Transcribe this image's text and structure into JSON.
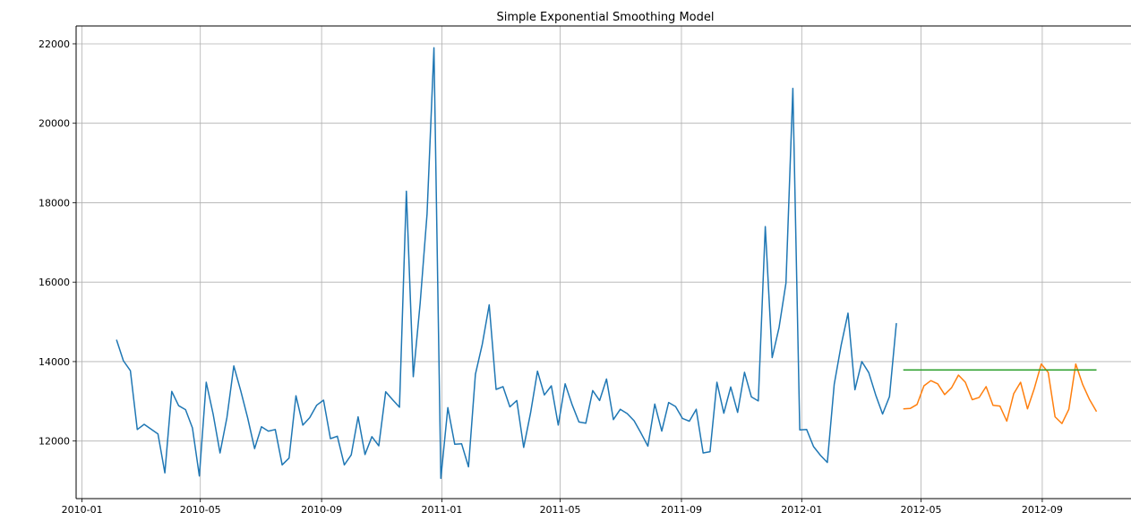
{
  "chart_data": {
    "type": "line",
    "title": "Simple Exponential Smoothing Model",
    "xlabel": "",
    "ylabel": "",
    "grid": true,
    "x_ticks": [
      "2010-01",
      "2010-05",
      "2010-09",
      "2011-01",
      "2011-05",
      "2011-09",
      "2012-01",
      "2012-05",
      "2012-09"
    ],
    "y_ticks": [
      12000,
      14000,
      16000,
      18000,
      20000,
      22000
    ],
    "xlim": [
      "2009-12-26",
      "2012-11-30"
    ],
    "ylim": [
      10550,
      22450
    ],
    "series": [
      {
        "color": "#1f77b4",
        "x": [
          "2010-02-05",
          "2010-02-12",
          "2010-02-19",
          "2010-02-26",
          "2010-03-05",
          "2010-03-12",
          "2010-03-19",
          "2010-03-26",
          "2010-04-02",
          "2010-04-09",
          "2010-04-16",
          "2010-04-23",
          "2010-04-30",
          "2010-05-07",
          "2010-05-14",
          "2010-05-21",
          "2010-05-28",
          "2010-06-04",
          "2010-06-11",
          "2010-06-18",
          "2010-06-25",
          "2010-07-02",
          "2010-07-09",
          "2010-07-16",
          "2010-07-23",
          "2010-07-30",
          "2010-08-06",
          "2010-08-13",
          "2010-08-20",
          "2010-08-27",
          "2010-09-03",
          "2010-09-10",
          "2010-09-17",
          "2010-09-24",
          "2010-10-01",
          "2010-10-08",
          "2010-10-15",
          "2010-10-22",
          "2010-10-29",
          "2010-11-05",
          "2010-11-12",
          "2010-11-19",
          "2010-11-26",
          "2010-12-03",
          "2010-12-10",
          "2010-12-17",
          "2010-12-24",
          "2010-12-31",
          "2011-01-07",
          "2011-01-14",
          "2011-01-21",
          "2011-01-28",
          "2011-02-04",
          "2011-02-11",
          "2011-02-18",
          "2011-02-25",
          "2011-03-04",
          "2011-03-11",
          "2011-03-18",
          "2011-03-25",
          "2011-04-01",
          "2011-04-08",
          "2011-04-15",
          "2011-04-22",
          "2011-04-29",
          "2011-05-06",
          "2011-05-13",
          "2011-05-20",
          "2011-05-27",
          "2011-06-03",
          "2011-06-10",
          "2011-06-17",
          "2011-06-24",
          "2011-07-01",
          "2011-07-08",
          "2011-07-15",
          "2011-07-22",
          "2011-07-29",
          "2011-08-05",
          "2011-08-12",
          "2011-08-19",
          "2011-08-26",
          "2011-09-02",
          "2011-09-09",
          "2011-09-16",
          "2011-09-23",
          "2011-09-30",
          "2011-10-07",
          "2011-10-14",
          "2011-10-21",
          "2011-10-28",
          "2011-11-04",
          "2011-11-11",
          "2011-11-18",
          "2011-11-25",
          "2011-12-02",
          "2011-12-09",
          "2011-12-16",
          "2011-12-23",
          "2011-12-30",
          "2012-01-06",
          "2012-01-13",
          "2012-01-20",
          "2012-01-27",
          "2012-02-03",
          "2012-02-10",
          "2012-02-17",
          "2012-02-24",
          "2012-03-02",
          "2012-03-09",
          "2012-03-16",
          "2012-03-23",
          "2012-03-30",
          "2012-04-06"
        ],
        "values": [
          14550,
          14020,
          13770,
          12290,
          12420,
          12300,
          12180,
          11200,
          13250,
          12890,
          12790,
          12330,
          11120,
          13480,
          12680,
          11700,
          12590,
          13890,
          13260,
          12580,
          11810,
          12360,
          12250,
          12290,
          11400,
          11570,
          13140,
          12400,
          12590,
          12900,
          13030,
          12060,
          12120,
          11400,
          11650,
          12610,
          11660,
          12110,
          11880,
          13240,
          13040,
          12850,
          18290,
          13620,
          15470,
          17720,
          21900,
          11060,
          12840,
          11920,
          11930,
          11350,
          13680,
          14440,
          15430,
          13300,
          13370,
          12860,
          13020,
          11840,
          12710,
          13760,
          13160,
          13390,
          12400,
          13440,
          12920,
          12480,
          12450,
          13270,
          13020,
          13560,
          12540,
          12800,
          12690,
          12510,
          12200,
          11870,
          12930,
          12250,
          12970,
          12870,
          12570,
          12500,
          12800,
          11700,
          11730,
          13480,
          12700,
          13360,
          12720,
          13730,
          13110,
          13010,
          17400,
          14100,
          14860,
          15980,
          20880,
          12280,
          12290,
          11860,
          11640,
          11460,
          13430,
          14410,
          15220,
          13290,
          14000,
          13720,
          13160,
          12680,
          13120,
          14970
        ]
      },
      {
        "color": "#ff7f0e",
        "x": [
          "2012-04-13",
          "2012-04-20",
          "2012-04-27",
          "2012-05-04",
          "2012-05-11",
          "2012-05-18",
          "2012-05-25",
          "2012-06-01",
          "2012-06-08",
          "2012-06-15",
          "2012-06-22",
          "2012-06-29",
          "2012-07-06",
          "2012-07-13",
          "2012-07-20",
          "2012-07-27",
          "2012-08-03",
          "2012-08-10",
          "2012-08-17",
          "2012-08-24",
          "2012-08-31",
          "2012-09-07",
          "2012-09-14",
          "2012-09-21",
          "2012-09-28",
          "2012-10-05",
          "2012-10-12",
          "2012-10-19",
          "2012-10-26"
        ],
        "values": [
          12810,
          12820,
          12920,
          13390,
          13520,
          13440,
          13170,
          13340,
          13660,
          13480,
          13040,
          13100,
          13370,
          12900,
          12880,
          12500,
          13190,
          13480,
          12810,
          13330,
          13940,
          13730,
          12610,
          12440,
          12800,
          13940,
          13420,
          13040,
          12740
        ]
      },
      {
        "color": "#2ca02c",
        "x": [
          "2012-04-13",
          "2012-10-26"
        ],
        "values": [
          13790,
          13790
        ]
      }
    ]
  }
}
